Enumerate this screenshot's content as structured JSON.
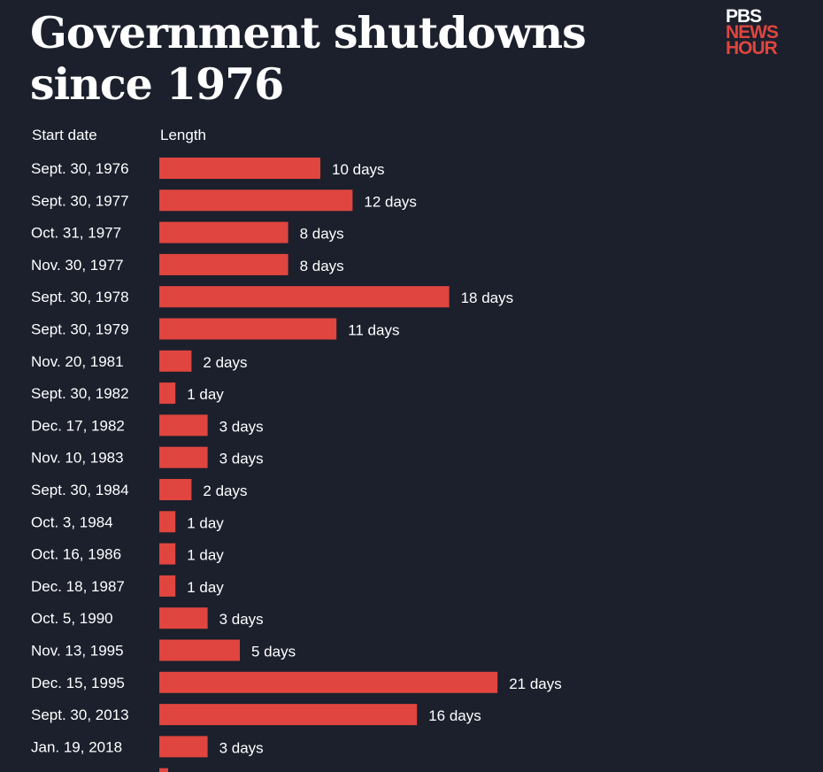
{
  "title": "Government shutdowns since 1976",
  "logo": {
    "line1": "PBS",
    "line2": "NEWS",
    "line3": "HOUR"
  },
  "colors": {
    "background": "#1b202c",
    "bar": "#e0453f",
    "text": "#ffffff"
  },
  "chart_data": {
    "type": "bar",
    "orientation": "horizontal",
    "title": "Government shutdowns since 1976",
    "category_header": "Start date",
    "value_header": "Length",
    "categories": [
      "Sept. 30, 1976",
      "Sept. 30, 1977",
      "Oct. 31, 1977",
      "Nov. 30, 1977",
      "Sept. 30, 1978",
      "Sept. 30, 1979",
      "Nov. 20, 1981",
      "Sept. 30, 1982",
      "Dec. 17, 1982",
      "Nov. 10, 1983",
      "Sept. 30, 1984",
      "Oct. 3, 1984",
      "Oct. 16, 1986",
      "Dec. 18, 1987",
      "Oct. 5, 1990",
      "Nov. 13, 1995",
      "Dec. 15, 1995",
      "Sept. 30, 2013",
      "Jan. 19, 2018"
    ],
    "values": [
      10,
      12,
      8,
      8,
      18,
      11,
      2,
      1,
      3,
      3,
      2,
      1,
      1,
      1,
      3,
      5,
      21,
      16,
      3
    ],
    "value_labels": [
      "10 days",
      "12 days",
      "8 days",
      "8 days",
      "18 days",
      "11 days",
      "2 days",
      "1 day",
      "3 days",
      "3 days",
      "2 days",
      "1 day",
      "1 day",
      "1 day",
      "3 days",
      "5 days",
      "21 days",
      "16 days",
      "3 days"
    ],
    "unit": "days",
    "grid": false
  }
}
